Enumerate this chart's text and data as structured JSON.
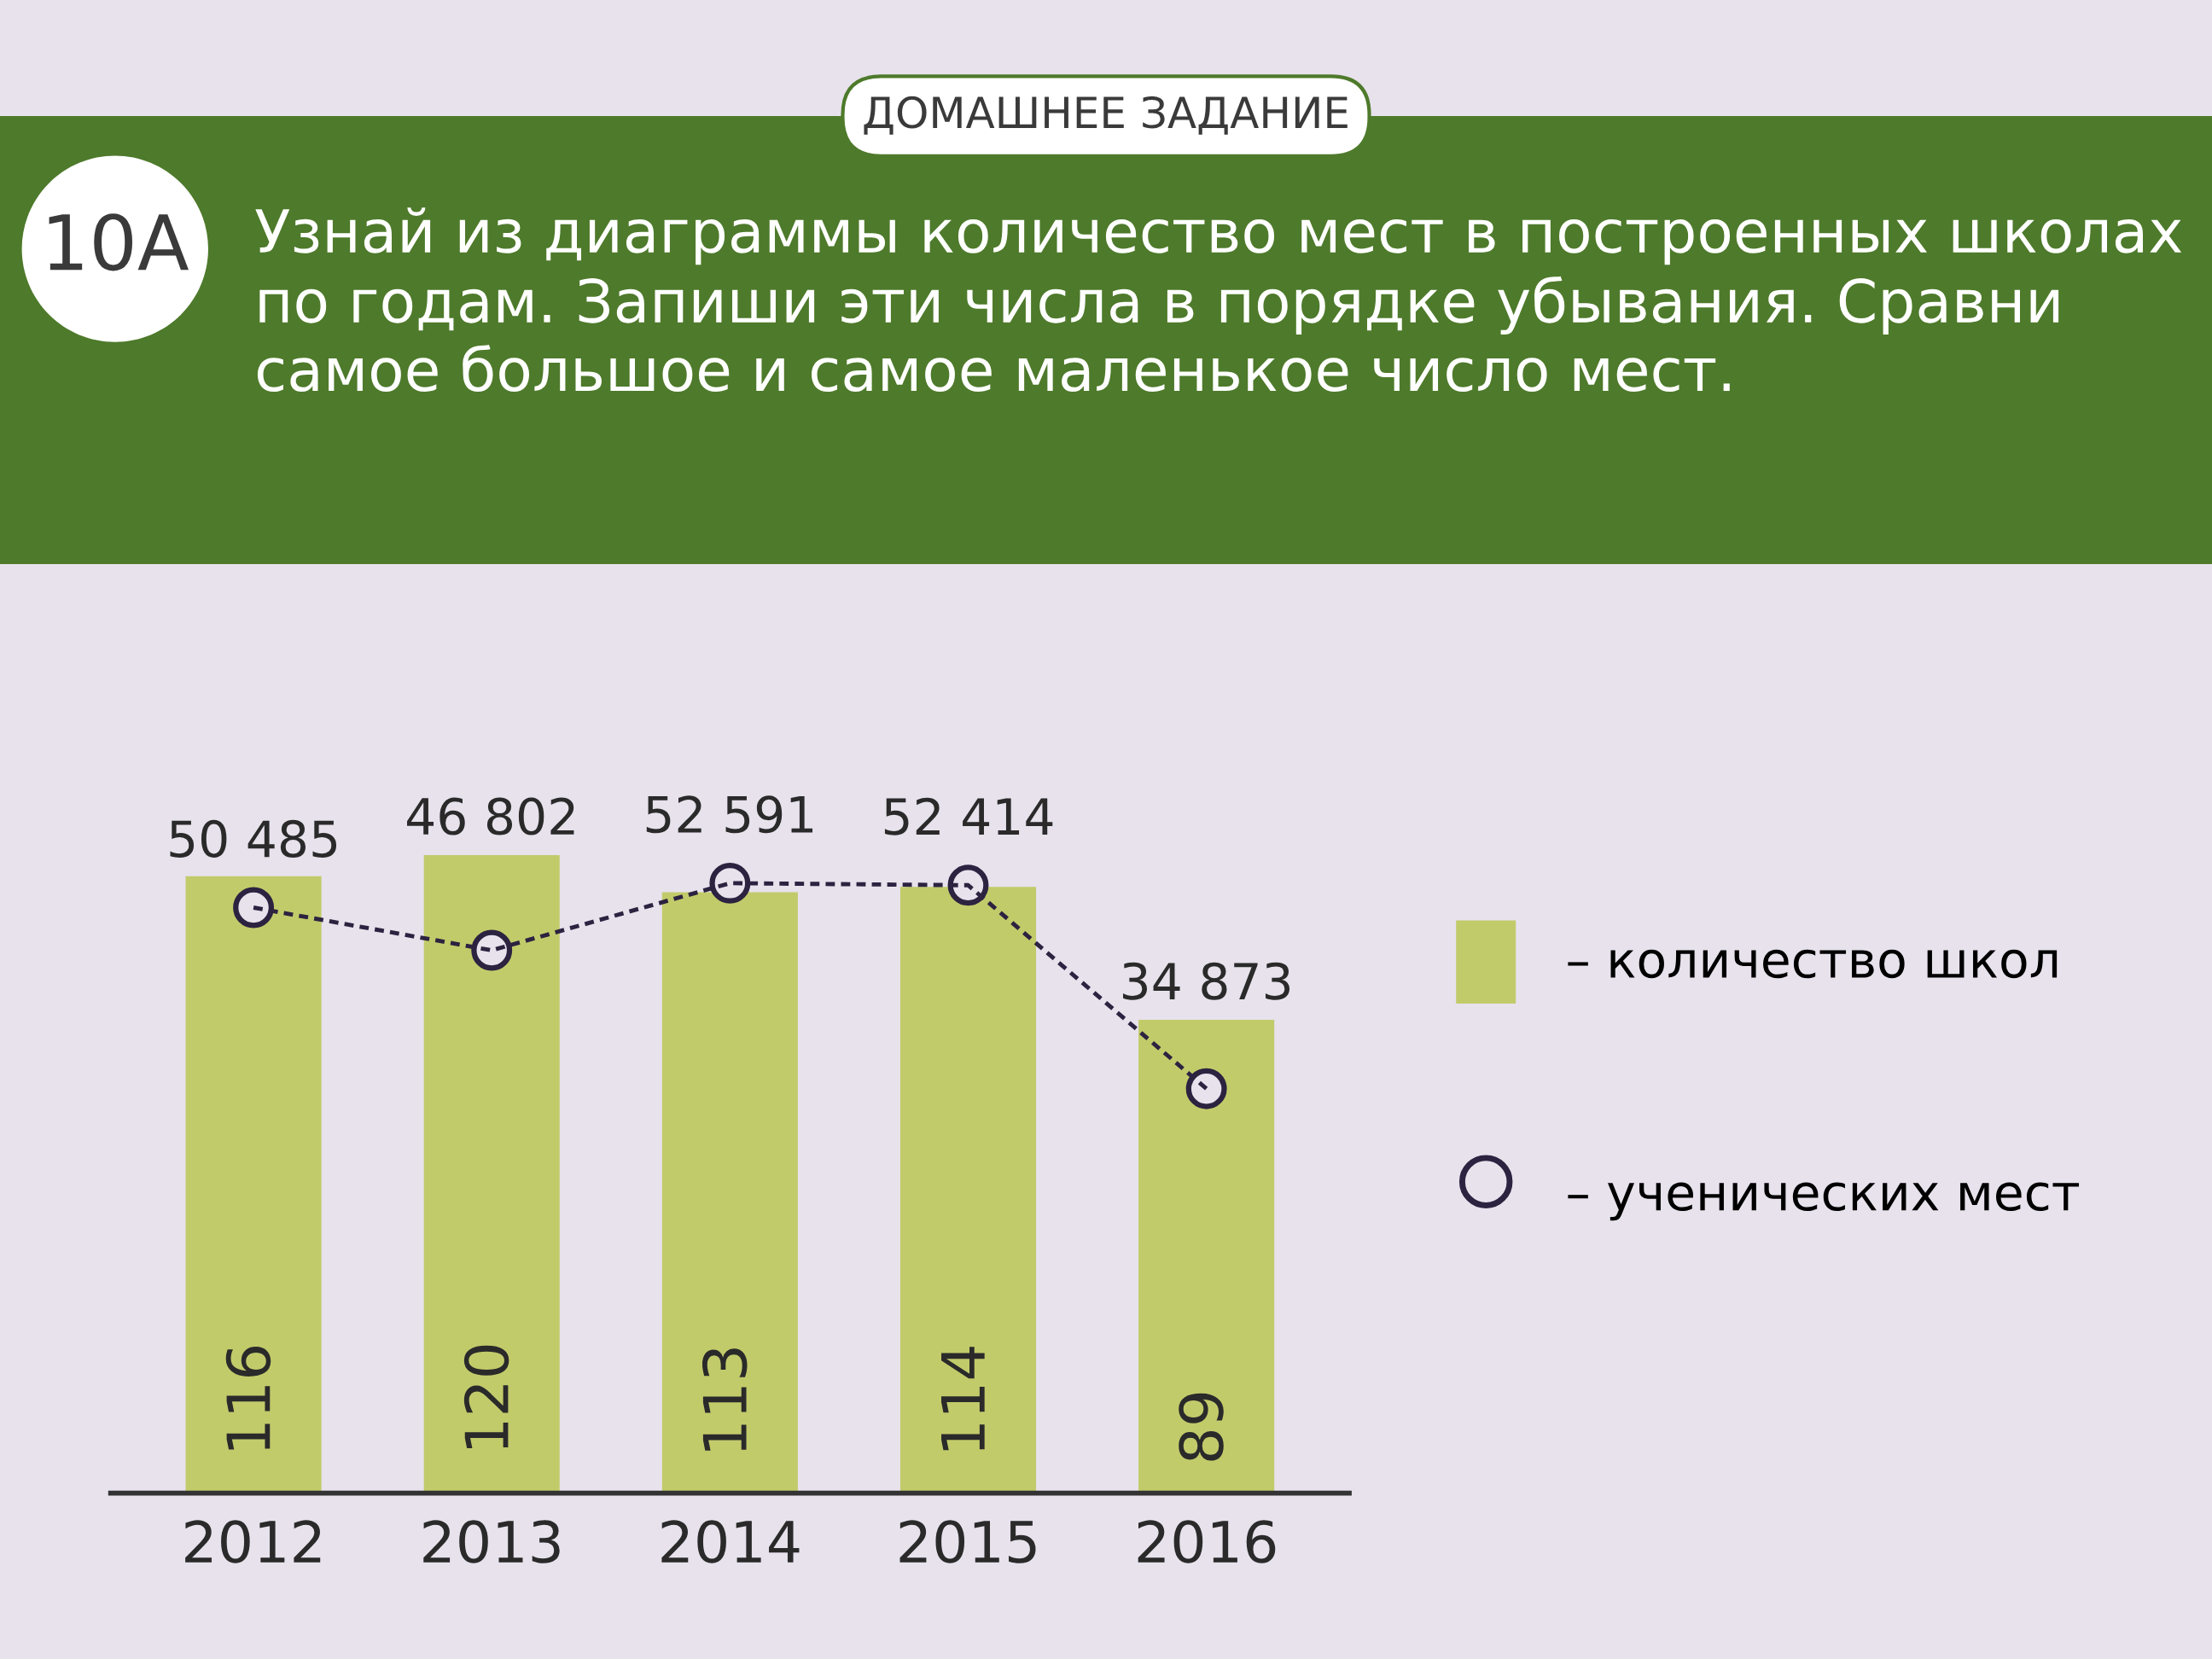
{
  "chart_data": {
    "type": "bar",
    "title": "Узнай из диаграммы количество мест в построенных школах по годам. Запиши эти числа в порядке убывания. Сравни самое большое и самое маленькое число мест.",
    "annotations": [
      "10А",
      "ДОМАШНЕЕ ЗАДАНИЕ"
    ],
    "categories": [
      "2012",
      "2013",
      "2014",
      "2015",
      "2016"
    ],
    "series": [
      {
        "name": "– количество школ",
        "color": "#c2cb6a",
        "values": [
          116,
          120,
          113,
          114,
          89
        ],
        "value_labels": [
          "116",
          "120",
          "113",
          "114",
          "89"
        ]
      },
      {
        "name": "– ученических мест",
        "type": "line",
        "axis": "y2",
        "color": "#2b2340",
        "marker": "circle",
        "line_style": "dashed",
        "values": [
          50485,
          46802,
          52591,
          52414,
          34873
        ],
        "value_labels": [
          "50 485",
          "46 802",
          "52 591",
          "52 414",
          "34 873"
        ]
      }
    ],
    "tick_labels": "x",
    "legend": "right"
  }
}
